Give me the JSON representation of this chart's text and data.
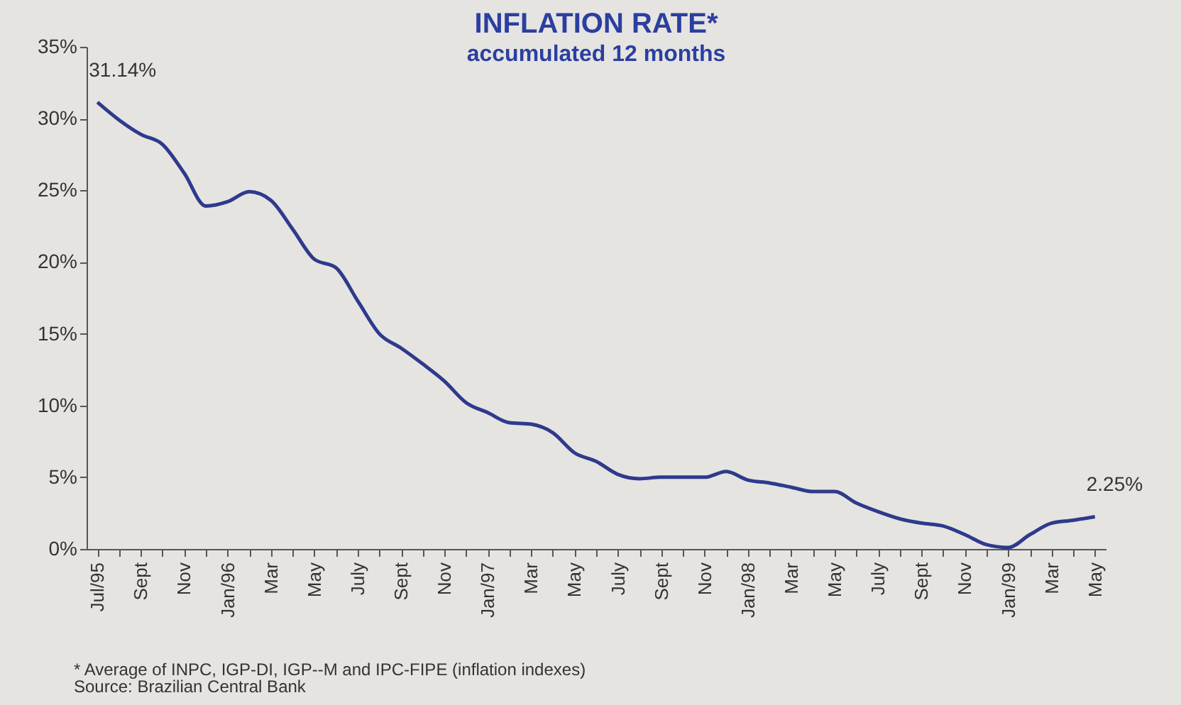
{
  "chart_data": {
    "type": "line",
    "title": "INFLATION RATE*",
    "subtitle": "accumulated 12 months",
    "categories": [
      "Jul/95",
      null,
      "Sept",
      null,
      "Nov",
      null,
      "Jan/96",
      null,
      "Mar",
      null,
      "May",
      null,
      "July",
      null,
      "Sept",
      null,
      "Nov",
      null,
      "Jan/97",
      null,
      "Mar",
      null,
      "May",
      null,
      "July",
      null,
      "Sept",
      null,
      "Nov",
      null,
      "Jan/98",
      null,
      "Mar",
      null,
      "May",
      null,
      "July",
      null,
      "Sept",
      null,
      "Nov",
      null,
      "Jan/99",
      null,
      "Mar",
      null,
      "May"
    ],
    "series": [
      {
        "color": "#2e3a8c",
        "values": [
          31.14,
          29.9,
          28.9,
          28.2,
          26.2,
          23.9,
          24.2,
          24.9,
          24.3,
          22.3,
          20.2,
          19.6,
          17.3,
          15.0,
          14.0,
          12.9,
          11.7,
          10.2,
          9.5,
          8.8,
          8.7,
          8.1,
          6.7,
          6.1,
          5.2,
          4.9,
          5.0,
          5.0,
          5.0,
          5.4,
          4.8,
          4.6,
          4.3,
          4.0,
          4.0,
          3.2,
          2.6,
          2.1,
          1.8,
          1.6,
          1.0,
          0.3,
          0.1,
          1.0,
          1.8,
          2.0,
          2.25
        ],
        "value_labels": [
          "31.14%",
          null,
          null,
          null,
          null,
          null,
          null,
          null,
          null,
          null,
          null,
          null,
          null,
          null,
          null,
          null,
          null,
          null,
          null,
          null,
          null,
          null,
          null,
          null,
          null,
          null,
          null,
          null,
          null,
          null,
          null,
          null,
          null,
          null,
          null,
          null,
          null,
          null,
          null,
          null,
          null,
          null,
          null,
          null,
          null,
          null,
          "2.25%"
        ]
      }
    ],
    "ylim": [
      0,
      35
    ],
    "yticks": [
      {
        "value": 0,
        "label": "0%"
      },
      {
        "value": 5,
        "label": "5%"
      },
      {
        "value": 10,
        "label": "10%"
      },
      {
        "value": 15,
        "label": "15%"
      },
      {
        "value": 20,
        "label": "20%"
      },
      {
        "value": 25,
        "label": "25%"
      },
      {
        "value": 30,
        "label": "30%"
      },
      {
        "value": 35,
        "label": "35%"
      }
    ],
    "grid": false,
    "marker": "none",
    "line_style": "solid",
    "annotations": [
      "* Average of INPC, IGP-DI, IGP--M and IPC-FIPE (inflation indexes)",
      "Source: Brazilian Central Bank"
    ]
  }
}
